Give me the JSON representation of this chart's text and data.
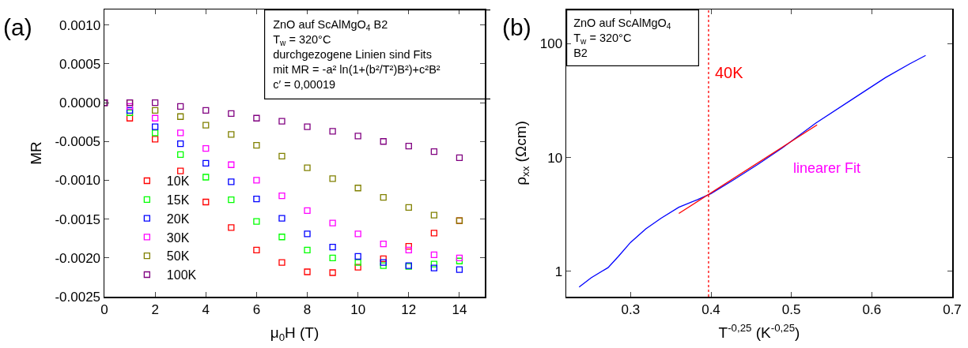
{
  "chart_data": [
    {
      "type": "scatter",
      "xlabel": "μ$_{0}$H (T)",
      "ylabel": "MR",
      "marker": "square",
      "legend": "bottom left",
      "grid": false,
      "annotations": [
        "(a)",
        "ZnO auf ScAlMgO$_{4}$ B2",
        "T$_{w}$ = 320°C",
        "durchgezogene Linien sind Fits",
        "mit MR = -a² ln(1+(b²/T²)B²)+c²B²",
        "c′ = 0,00019"
      ],
      "x": [
        0,
        1,
        2,
        3,
        4,
        5,
        6,
        7,
        8,
        9,
        10,
        11,
        12,
        13,
        14
      ],
      "xlim": [
        0,
        15
      ],
      "xticks": [
        0,
        2,
        4,
        6,
        8,
        10,
        12,
        14
      ],
      "ylim": [
        -0.0025,
        0.0012
      ],
      "yticks": [
        {
          "value": -0.0025,
          "label": "-0.0025"
        },
        {
          "value": -0.002,
          "label": "-0.0020"
        },
        {
          "value": -0.0015,
          "label": "-0.0015"
        },
        {
          "value": -0.001,
          "label": "-0.0010"
        },
        {
          "value": -0.0005,
          "label": "-0.0005"
        },
        {
          "value": 0,
          "label": "0.0000"
        },
        {
          "value": 0.0005,
          "label": "0.0005"
        },
        {
          "value": 0.001,
          "label": "0.0010"
        }
      ],
      "series": [
        {
          "name": "10K",
          "color": "#ff0000",
          "values": [
            0,
            -0.0002,
            -0.00047,
            -0.00088,
            -0.00128,
            -0.00161,
            -0.0019,
            -0.00206,
            -0.00218,
            -0.00219,
            -0.00212,
            -0.00201,
            -0.00185,
            -0.00168,
            -0.00152
          ]
        },
        {
          "name": "15K",
          "color": "#00ff00",
          "values": [
            0,
            -0.00013,
            -0.00039,
            -0.00067,
            -0.00096,
            -0.00125,
            -0.00153,
            -0.00173,
            -0.0019,
            -0.002,
            -0.00206,
            -0.0021,
            -0.00211,
            -0.00208,
            -0.00204
          ]
        },
        {
          "name": "20K",
          "color": "#0000ff",
          "values": [
            0,
            -0.0001,
            -0.00031,
            -0.00053,
            -0.00078,
            -0.00102,
            -0.00124,
            -0.00149,
            -0.00169,
            -0.00186,
            -0.00198,
            -0.00206,
            -0.0021,
            -0.00213,
            -0.00215
          ]
        },
        {
          "name": "30K",
          "color": "#ff00ff",
          "values": [
            0,
            -5e-05,
            -0.0002,
            -0.00039,
            -0.00059,
            -0.0008,
            -0.001,
            -0.0012,
            -0.00139,
            -0.00155,
            -0.00169,
            -0.00182,
            -0.0019,
            -0.00196,
            -0.002
          ]
        },
        {
          "name": "50K",
          "color": "#808000",
          "values": [
            0,
            0,
            -0.0001,
            -0.00018,
            -0.00029,
            -0.00041,
            -0.00055,
            -0.00069,
            -0.00084,
            -0.00098,
            -0.0011,
            -0.00122,
            -0.00135,
            -0.00145,
            -0.00152
          ]
        },
        {
          "name": "100K",
          "color": "#800080",
          "values": [
            0,
            0,
            0,
            -5e-05,
            -0.0001,
            -0.00014,
            -0.0002,
            -0.00024,
            -0.00031,
            -0.00037,
            -0.00043,
            -0.0005,
            -0.00056,
            -0.00063,
            -0.00071
          ]
        }
      ]
    },
    {
      "type": "line",
      "xlabel": "T$^{-0,25}$ (K$^{-0,25}$)",
      "ylabel": "ρ$_{xx}$ (Ωcm)",
      "log": "y",
      "marker": "none",
      "legend": false,
      "grid": false,
      "annotations": [
        "(b)",
        "ZnO auf ScAlMgO$_{4}$",
        "T$_{w}$ = 320°C",
        "B2",
        {
          "text": "linearer Fit",
          "x": 0.5,
          "y": 13.9
        }
      ],
      "xlim": [
        0.22,
        0.7
      ],
      "xticks": [
        0.3,
        0.4,
        0.5,
        0.6,
        0.7
      ],
      "ylim": [
        0.6,
        200
      ],
      "yticks": [
        1,
        10,
        100
      ],
      "ref_lines": [
        {
          "axis": "x",
          "value": 0.397,
          "label": "40K",
          "color": "#ff0000",
          "line_style": "dotted"
        }
      ],
      "series": [
        {
          "color": "#0000ff",
          "x": [
            0.236,
            0.251,
            0.272,
            0.285,
            0.3,
            0.319,
            0.338,
            0.36,
            0.383,
            0.4,
            0.428,
            0.458,
            0.489,
            0.53,
            0.579,
            0.617,
            0.647,
            0.667
          ],
          "values": [
            0.73,
            0.88,
            1.08,
            1.36,
            1.8,
            2.37,
            2.94,
            3.66,
            4.27,
            4.83,
            6.37,
            8.68,
            12.2,
            20,
            33.7,
            50.4,
            66.5,
            79
          ]
        },
        {
          "type": "line",
          "color": "#ff0000",
          "x": [
            0.36,
            0.532
          ],
          "values": [
            3.23,
            19.4
          ]
        }
      ]
    }
  ]
}
